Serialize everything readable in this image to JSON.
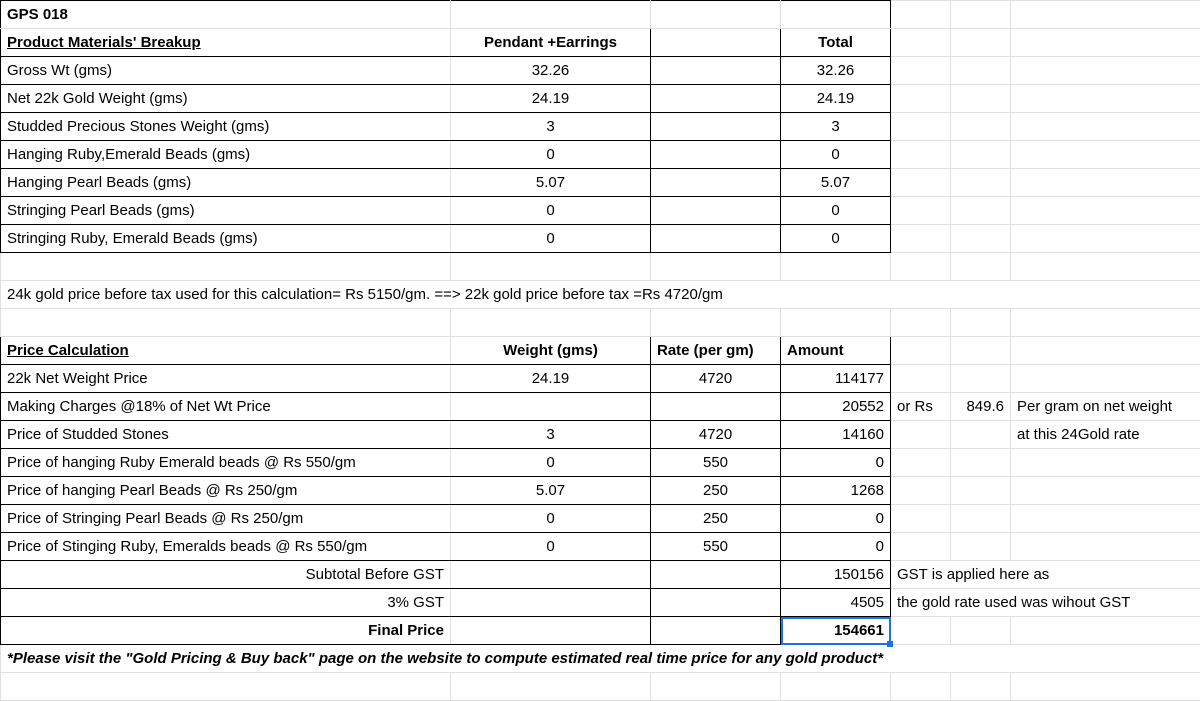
{
  "product_code": "GPS 018",
  "materials": {
    "header": {
      "label": "Product Materials' Breakup",
      "col1": "Pendant +Earrings",
      "col3": "Total"
    },
    "rows": [
      {
        "label": "Gross Wt (gms)",
        "v1": "32.26",
        "v3": "32.26"
      },
      {
        "label": "Net 22k Gold Weight (gms)",
        "v1": "24.19",
        "v3": "24.19"
      },
      {
        "label": "Studded Precious Stones Weight (gms)",
        "v1": "3",
        "v3": "3"
      },
      {
        "label": "Hanging Ruby,Emerald Beads (gms)",
        "v1": "0",
        "v3": "0"
      },
      {
        "label": "Hanging Pearl Beads (gms)",
        "v1": "5.07",
        "v3": "5.07"
      },
      {
        "label": "Stringing Pearl Beads (gms)",
        "v1": "0",
        "v3": "0"
      },
      {
        "label": "Stringing Ruby, Emerald Beads (gms)",
        "v1": "0",
        "v3": "0"
      }
    ]
  },
  "gold_note": "24k gold price before tax used for this calculation= Rs 5150/gm.  ==> 22k gold price before tax =Rs 4720/gm",
  "calc": {
    "header": {
      "label": "Price Calculation",
      "col1": "Weight (gms)",
      "col2": "Rate (per gm)",
      "col3": "Amount"
    },
    "rows": [
      {
        "label": "22k Net Weight Price",
        "w": "24.19",
        "r": "4720",
        "a": "114177"
      },
      {
        "label": " Making Charges @18% of Net Wt Price",
        "w": "",
        "r": "",
        "a": "20552"
      },
      {
        "label": "Price of Studded Stones",
        "w": "3",
        "r": "4720",
        "a": "14160"
      },
      {
        "label": "Price of hanging Ruby Emerald beads @ Rs 550/gm",
        "w": "0",
        "r": "550",
        "a": "0"
      },
      {
        "label": "Price of hanging Pearl Beads @ Rs 250/gm",
        "w": "5.07",
        "r": "250",
        "a": "1268"
      },
      {
        "label": "Price of Stringing Pearl Beads @ Rs 250/gm",
        "w": "0",
        "r": "250",
        "a": "0"
      },
      {
        "label": "Price of Stinging Ruby, Emeralds beads @ Rs 550/gm",
        "w": "0",
        "r": "550",
        "a": "0"
      }
    ],
    "subtotal": {
      "label": "Subtotal Before GST",
      "a": "150156"
    },
    "gst": {
      "label": "3% GST",
      "a": "4505"
    },
    "final": {
      "label": "Final Price",
      "a": "154661"
    }
  },
  "side_notes": {
    "making_or": "or Rs",
    "making_rate": "849.6",
    "making_tail": "Per gram on net weight",
    "stones_tail": "at this 24Gold rate",
    "gst_note1": "GST is applied here as",
    "gst_note2": "the gold rate used was wihout GST"
  },
  "footer": "*Please visit the \"Gold Pricing & Buy back\" page on the website to compute estimated real time price for any gold product*",
  "colors": {
    "grid": "#e0e0e0",
    "border": "#000000",
    "select": "#1a73e8",
    "bg": "#ffffff"
  }
}
